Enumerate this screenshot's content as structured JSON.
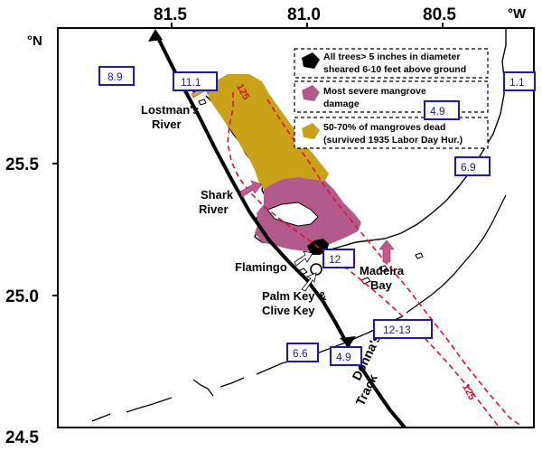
{
  "axes": {
    "top_ticks": [
      "81.5",
      "81.0",
      "80.5"
    ],
    "unit_west": "°W",
    "unit_north": "°N",
    "left_ticks": [
      "25.5",
      "25.0",
      "24.5"
    ]
  },
  "legend": {
    "items": [
      {
        "label_lines": [
          "All trees> 5 inches in diameter",
          "sheared 6-10 feet above ground"
        ],
        "color": "#000000"
      },
      {
        "label_lines": [
          "Most severe mangrove",
          "damage"
        ],
        "color": "#b35a8c"
      },
      {
        "label_lines": [
          "50-70% of mangroves dead",
          "(survived 1935 Labor Day Hur.)"
        ],
        "color": "#c9a21a"
      }
    ]
  },
  "places": {
    "lostmans": [
      "Lostman's",
      "River"
    ],
    "shark": [
      "Shark",
      "River"
    ],
    "flamingo": "Flamingo",
    "madeira": [
      "Madeira",
      "Bay"
    ],
    "palm_key": [
      "Palm Key &",
      "Clive Key"
    ]
  },
  "track_label": [
    "Donna's",
    "Track"
  ],
  "contour_label": "125",
  "surge_boxes": [
    "8.9",
    "11.1",
    "1.1",
    "4.9",
    "6.9",
    "12",
    "12-13",
    "6.6",
    "4.9"
  ],
  "colors": {
    "box_stroke": "#1a1ab0",
    "contour": "#e0102c",
    "orange_arrow": "#d7a24a",
    "pink_arrow": "#c8588c"
  }
}
